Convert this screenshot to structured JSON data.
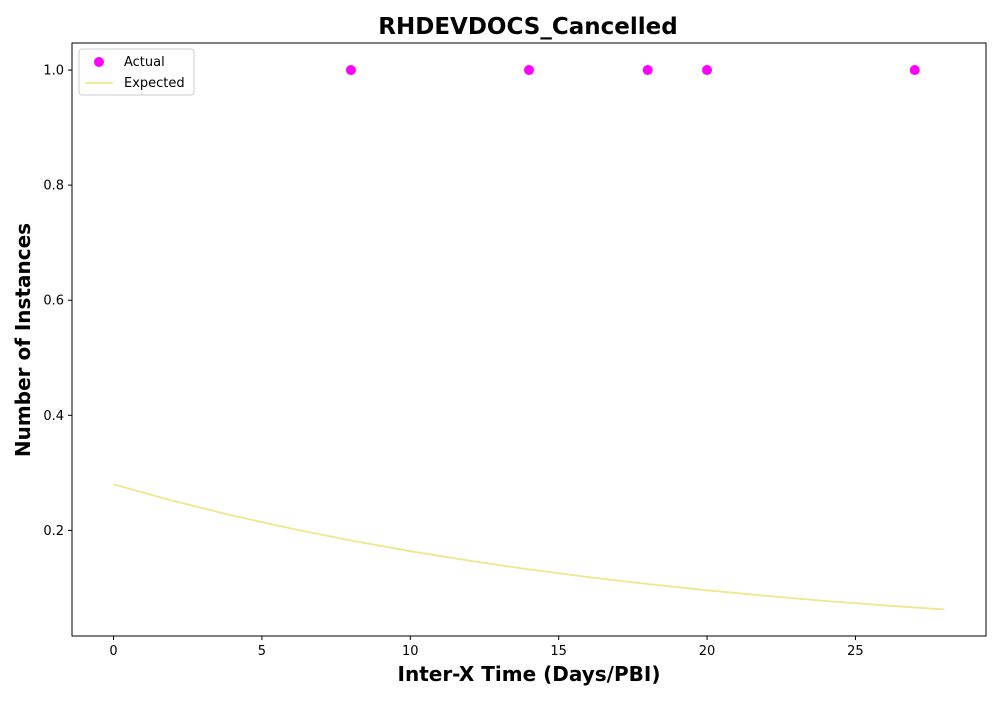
{
  "chart_data": {
    "type": "scatter",
    "title": "RHDEVDOCS_Cancelled",
    "xlabel": "Inter-X Time (Days/PBI)",
    "ylabel": "Number of Instances",
    "xlim": [
      -1.4,
      29.4
    ],
    "ylim": [
      0.0165,
      1.047
    ],
    "x_ticks": [
      0,
      5,
      10,
      15,
      20,
      25
    ],
    "x_tick_labels": [
      "0",
      "5",
      "10",
      "15",
      "20",
      "25"
    ],
    "y_ticks": [
      0.2,
      0.4,
      0.6,
      0.8,
      1.0
    ],
    "y_tick_labels": [
      "0.2",
      "0.4",
      "0.6",
      "0.8",
      "1.0"
    ],
    "grid": false,
    "legend_position": "top-left",
    "series": [
      {
        "name": "Actual",
        "kind": "scatter",
        "color": "#ff00ff",
        "points": [
          {
            "x": 8,
            "y": 1.0
          },
          {
            "x": 14,
            "y": 1.0
          },
          {
            "x": 18,
            "y": 1.0
          },
          {
            "x": 20,
            "y": 1.0
          },
          {
            "x": 27,
            "y": 1.0
          }
        ]
      },
      {
        "name": "Expected",
        "kind": "line",
        "color": "#f0e68c",
        "points": [
          {
            "x": 0,
            "y": 0.28
          },
          {
            "x": 2,
            "y": 0.2515
          },
          {
            "x": 4,
            "y": 0.226
          },
          {
            "x": 6,
            "y": 0.203
          },
          {
            "x": 8,
            "y": 0.1824
          },
          {
            "x": 10,
            "y": 0.1639
          },
          {
            "x": 12,
            "y": 0.1472
          },
          {
            "x": 14,
            "y": 0.1323
          },
          {
            "x": 16,
            "y": 0.1188
          },
          {
            "x": 18,
            "y": 0.1068
          },
          {
            "x": 20,
            "y": 0.0959
          },
          {
            "x": 22,
            "y": 0.0862
          },
          {
            "x": 24,
            "y": 0.0774
          },
          {
            "x": 26,
            "y": 0.0696
          },
          {
            "x": 28,
            "y": 0.0625
          }
        ]
      }
    ]
  }
}
